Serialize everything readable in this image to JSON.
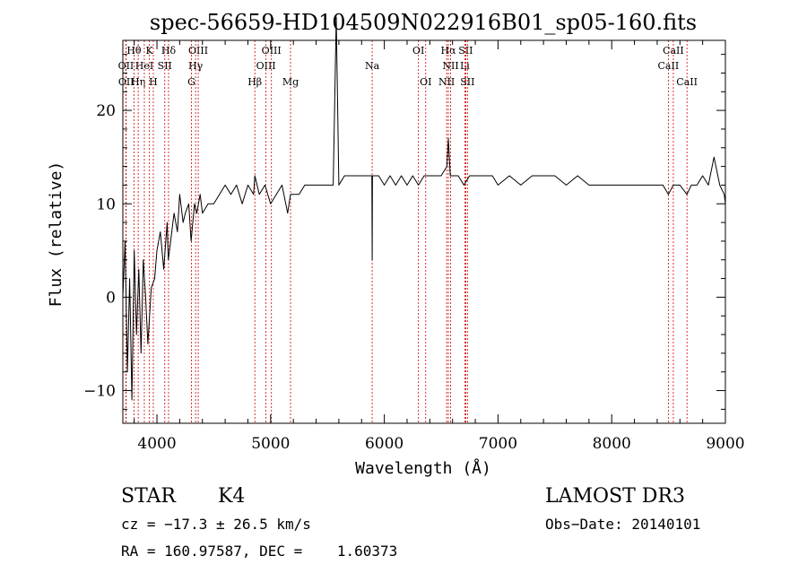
{
  "chart_data": {
    "type": "line",
    "title": "spec-56659-HD104509N022916B01_sp05-160.fits",
    "xlabel": "Wavelength (Å)",
    "ylabel": "Flux (relative)",
    "xlim": [
      3700,
      9000
    ],
    "ylim": [
      -13.5,
      27.5
    ],
    "x_ticks": [
      4000,
      5000,
      6000,
      7000,
      8000,
      9000
    ],
    "x_tick_labels": [
      "4000",
      "5000",
      "6000",
      "7000",
      "8000",
      "9000"
    ],
    "y_ticks": [
      -10,
      0,
      10,
      20
    ],
    "y_tick_labels": [
      "−10",
      "0",
      "10",
      "20"
    ],
    "grid": false,
    "series": [
      {
        "name": "flux",
        "x": [
          3700,
          3720,
          3740,
          3760,
          3780,
          3800,
          3820,
          3840,
          3860,
          3880,
          3900,
          3920,
          3950,
          3980,
          4000,
          4030,
          4060,
          4090,
          4100,
          4120,
          4150,
          4180,
          4200,
          4230,
          4250,
          4280,
          4300,
          4330,
          4350,
          4380,
          4400,
          4450,
          4500,
          4550,
          4600,
          4650,
          4700,
          4750,
          4800,
          4850,
          4861,
          4900,
          4950,
          5000,
          5050,
          5100,
          5150,
          5175,
          5200,
          5250,
          5300,
          5350,
          5400,
          5450,
          5500,
          5550,
          5577,
          5600,
          5650,
          5700,
          5750,
          5800,
          5850,
          5890,
          5893,
          5896,
          5950,
          6000,
          6050,
          6100,
          6150,
          6200,
          6250,
          6300,
          6350,
          6400,
          6450,
          6500,
          6550,
          6563,
          6580,
          6600,
          6650,
          6700,
          6750,
          6800,
          6850,
          6900,
          6950,
          7000,
          7100,
          7200,
          7300,
          7400,
          7500,
          7600,
          7700,
          7800,
          7900,
          8000,
          8100,
          8200,
          8300,
          8400,
          8450,
          8498,
          8542,
          8600,
          8662,
          8700,
          8750,
          8800,
          8850,
          8900,
          8950,
          8990,
          9000
        ],
        "y": [
          0,
          6,
          -8,
          2,
          -11,
          5,
          -4,
          3,
          -6,
          4,
          0,
          -5,
          1,
          2,
          5,
          7,
          3,
          8,
          4,
          6,
          9,
          7,
          11,
          8,
          9,
          10,
          6,
          10,
          9,
          11,
          9,
          10,
          10,
          11,
          12,
          11,
          12,
          10,
          12,
          11,
          13,
          11,
          12,
          10,
          11,
          12,
          9,
          11,
          11,
          11,
          12,
          12,
          12,
          12,
          12,
          12,
          30,
          12,
          13,
          13,
          13,
          13,
          13,
          13,
          4,
          13,
          13,
          12,
          13,
          12,
          13,
          12,
          13,
          12,
          13,
          13,
          13,
          13,
          14,
          17,
          13,
          13,
          13,
          12,
          13,
          13,
          13,
          13,
          13,
          12,
          13,
          12,
          13,
          13,
          13,
          12,
          13,
          12,
          12,
          12,
          12,
          12,
          12,
          12,
          12,
          11,
          12,
          12,
          11,
          12,
          12,
          13,
          12,
          15,
          12,
          11,
          10
        ]
      }
    ],
    "line_markers": [
      {
        "name": "Hθ",
        "wavelength": 3798,
        "row": 1
      },
      {
        "name": "OII",
        "wavelength": 3727,
        "row": 2
      },
      {
        "name": "OII",
        "wavelength": 3729,
        "row": 3
      },
      {
        "name": "Hη",
        "wavelength": 3835,
        "row": 3
      },
      {
        "name": "HeI",
        "wavelength": 3889,
        "row": 2
      },
      {
        "name": "K",
        "wavelength": 3934,
        "row": 1
      },
      {
        "name": "H",
        "wavelength": 3968,
        "row": 3
      },
      {
        "name": "SII",
        "wavelength": 4069,
        "row": 2
      },
      {
        "name": "Hδ",
        "wavelength": 4102,
        "row": 1
      },
      {
        "name": "OIII",
        "wavelength": 4363,
        "row": 1
      },
      {
        "name": "Hγ",
        "wavelength": 4340,
        "row": 2
      },
      {
        "name": "G",
        "wavelength": 4304,
        "row": 3
      },
      {
        "name": "Hβ",
        "wavelength": 4861,
        "row": 3
      },
      {
        "name": "OIII",
        "wavelength": 5007,
        "row": 1
      },
      {
        "name": "OIII",
        "wavelength": 4959,
        "row": 2
      },
      {
        "name": "Mg",
        "wavelength": 5175,
        "row": 3
      },
      {
        "name": "Na",
        "wavelength": 5893,
        "row": 2
      },
      {
        "name": "OI",
        "wavelength": 6300,
        "row": 1
      },
      {
        "name": "OI",
        "wavelength": 6364,
        "row": 3
      },
      {
        "name": "Hα",
        "wavelength": 6563,
        "row": 1
      },
      {
        "name": "NII",
        "wavelength": 6583,
        "row": 2
      },
      {
        "name": "NII",
        "wavelength": 6548,
        "row": 3
      },
      {
        "name": "SII",
        "wavelength": 6716,
        "row": 1
      },
      {
        "name": "Li",
        "wavelength": 6708,
        "row": 2
      },
      {
        "name": "SII",
        "wavelength": 6731,
        "row": 3
      },
      {
        "name": "CaII",
        "wavelength": 8542,
        "row": 1
      },
      {
        "name": "CaII",
        "wavelength": 8498,
        "row": 2
      },
      {
        "name": "CaII",
        "wavelength": 8662,
        "row": 3
      }
    ]
  },
  "info": {
    "object_class": "STAR",
    "subclass": "K4",
    "survey": "LAMOST DR3",
    "redshift": "cz = −17.3 ± 26.5 km/s",
    "obs_date": "Obs−Date: 20140101",
    "coords": "RA = 160.97587, DEC =    1.60373"
  },
  "colors": {
    "spectrum": "#000000",
    "marker_line": "#cc0000",
    "axis": "#000000"
  }
}
